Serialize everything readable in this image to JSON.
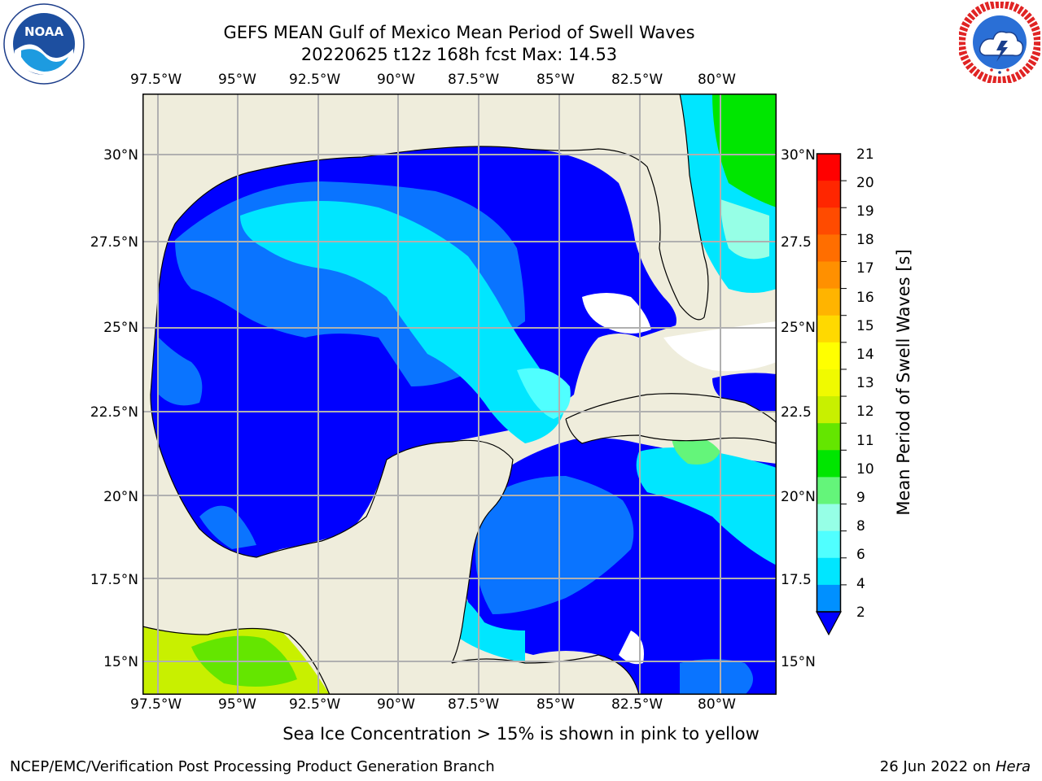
{
  "header": {
    "title_line1": "GEFS MEAN Gulf of Mexico Mean Period of Swell Waves",
    "title_line2": "20220625 t12z 168h fcst   Max: 14.53"
  },
  "logos": {
    "left": {
      "icon": "noaa-logo",
      "text": "NOAA",
      "ring_text": "NATIONAL OCEANIC AND ATMOSPHERIC ADMINISTRATION · U.S. DEPARTMENT OF COMMERCE"
    },
    "right": {
      "icon": "nws-logo",
      "ring_text": "NATIONAL WEATHER SERVICE"
    }
  },
  "map": {
    "lon_labels": [
      "97.5°W",
      "95°W",
      "92.5°W",
      "90°W",
      "87.5°W",
      "85°W",
      "82.5°W",
      "80°W"
    ],
    "lat_labels_left": [
      "30°N",
      "27.5°N",
      "25°N",
      "22.5°N",
      "20°N",
      "17.5°N",
      "15°N"
    ],
    "lat_labels_right": [
      "30°N",
      "27.5",
      "25°N",
      "22.5",
      "20°N",
      "17.5",
      "15°N"
    ],
    "land_color": "#efeddc",
    "grid_color": "#b0b0b0"
  },
  "colorbar": {
    "label": "Mean Period of Swell Waves [s]",
    "ticks": [
      "21",
      "20",
      "19",
      "18",
      "17",
      "16",
      "15",
      "14",
      "13",
      "12",
      "11",
      "10",
      "9",
      "8",
      "6",
      "4",
      "2"
    ],
    "colors": [
      "#ff0000",
      "#ff2600",
      "#ff4b00",
      "#ff6e00",
      "#ff9000",
      "#ffb400",
      "#ffd900",
      "#ffff00",
      "#f0fa00",
      "#c8f000",
      "#64e600",
      "#00e600",
      "#64f57a",
      "#96ffe6",
      "#50ffff",
      "#00e6ff",
      "#0090ff"
    ],
    "under_color": "#0000ff"
  },
  "caption": "Sea Ice Concentration > 15% is shown in pink to yellow",
  "footer": {
    "left": "NCEP/EMC/Verification Post Processing Product Generation Branch",
    "date": "26 Jun 2022 on ",
    "machine": "Hera"
  }
}
